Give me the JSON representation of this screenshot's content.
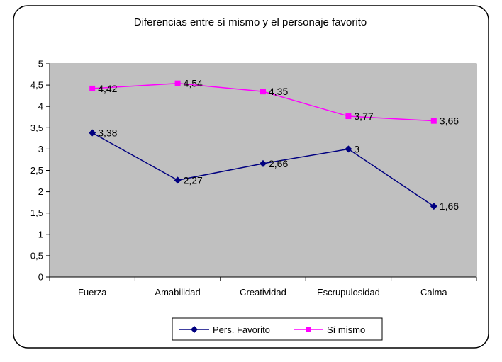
{
  "chart_data": {
    "type": "line",
    "title": "Diferencias entre sí mismo y el personaje favorito",
    "categories": [
      "Fuerza",
      "Amabilidad",
      "Creatividad",
      "Escrupulosidad",
      "Calma"
    ],
    "ylim": [
      0,
      5
    ],
    "yticks": [
      0,
      0.5,
      1,
      1.5,
      2,
      2.5,
      3,
      3.5,
      4,
      4.5,
      5
    ],
    "ytick_labels": [
      "0",
      "0,5",
      "1",
      "1,5",
      "2",
      "2,5",
      "3",
      "3,5",
      "4",
      "4,5",
      "5"
    ],
    "grid": false,
    "legend_position": "bottom",
    "series": [
      {
        "name": "Pers. Favorito",
        "values": [
          3.38,
          2.27,
          2.66,
          3,
          1.66
        ],
        "labels": [
          "3,38",
          "2,27",
          "2,66",
          "3",
          "1,66"
        ],
        "color": "#000080",
        "marker": "diamond"
      },
      {
        "name": "Sí mismo",
        "values": [
          4.42,
          4.54,
          4.35,
          3.77,
          3.66
        ],
        "labels": [
          "4,42",
          "4,54",
          "4,35",
          "3,77",
          "3,66"
        ],
        "color": "#ff00ff",
        "marker": "square"
      }
    ]
  }
}
